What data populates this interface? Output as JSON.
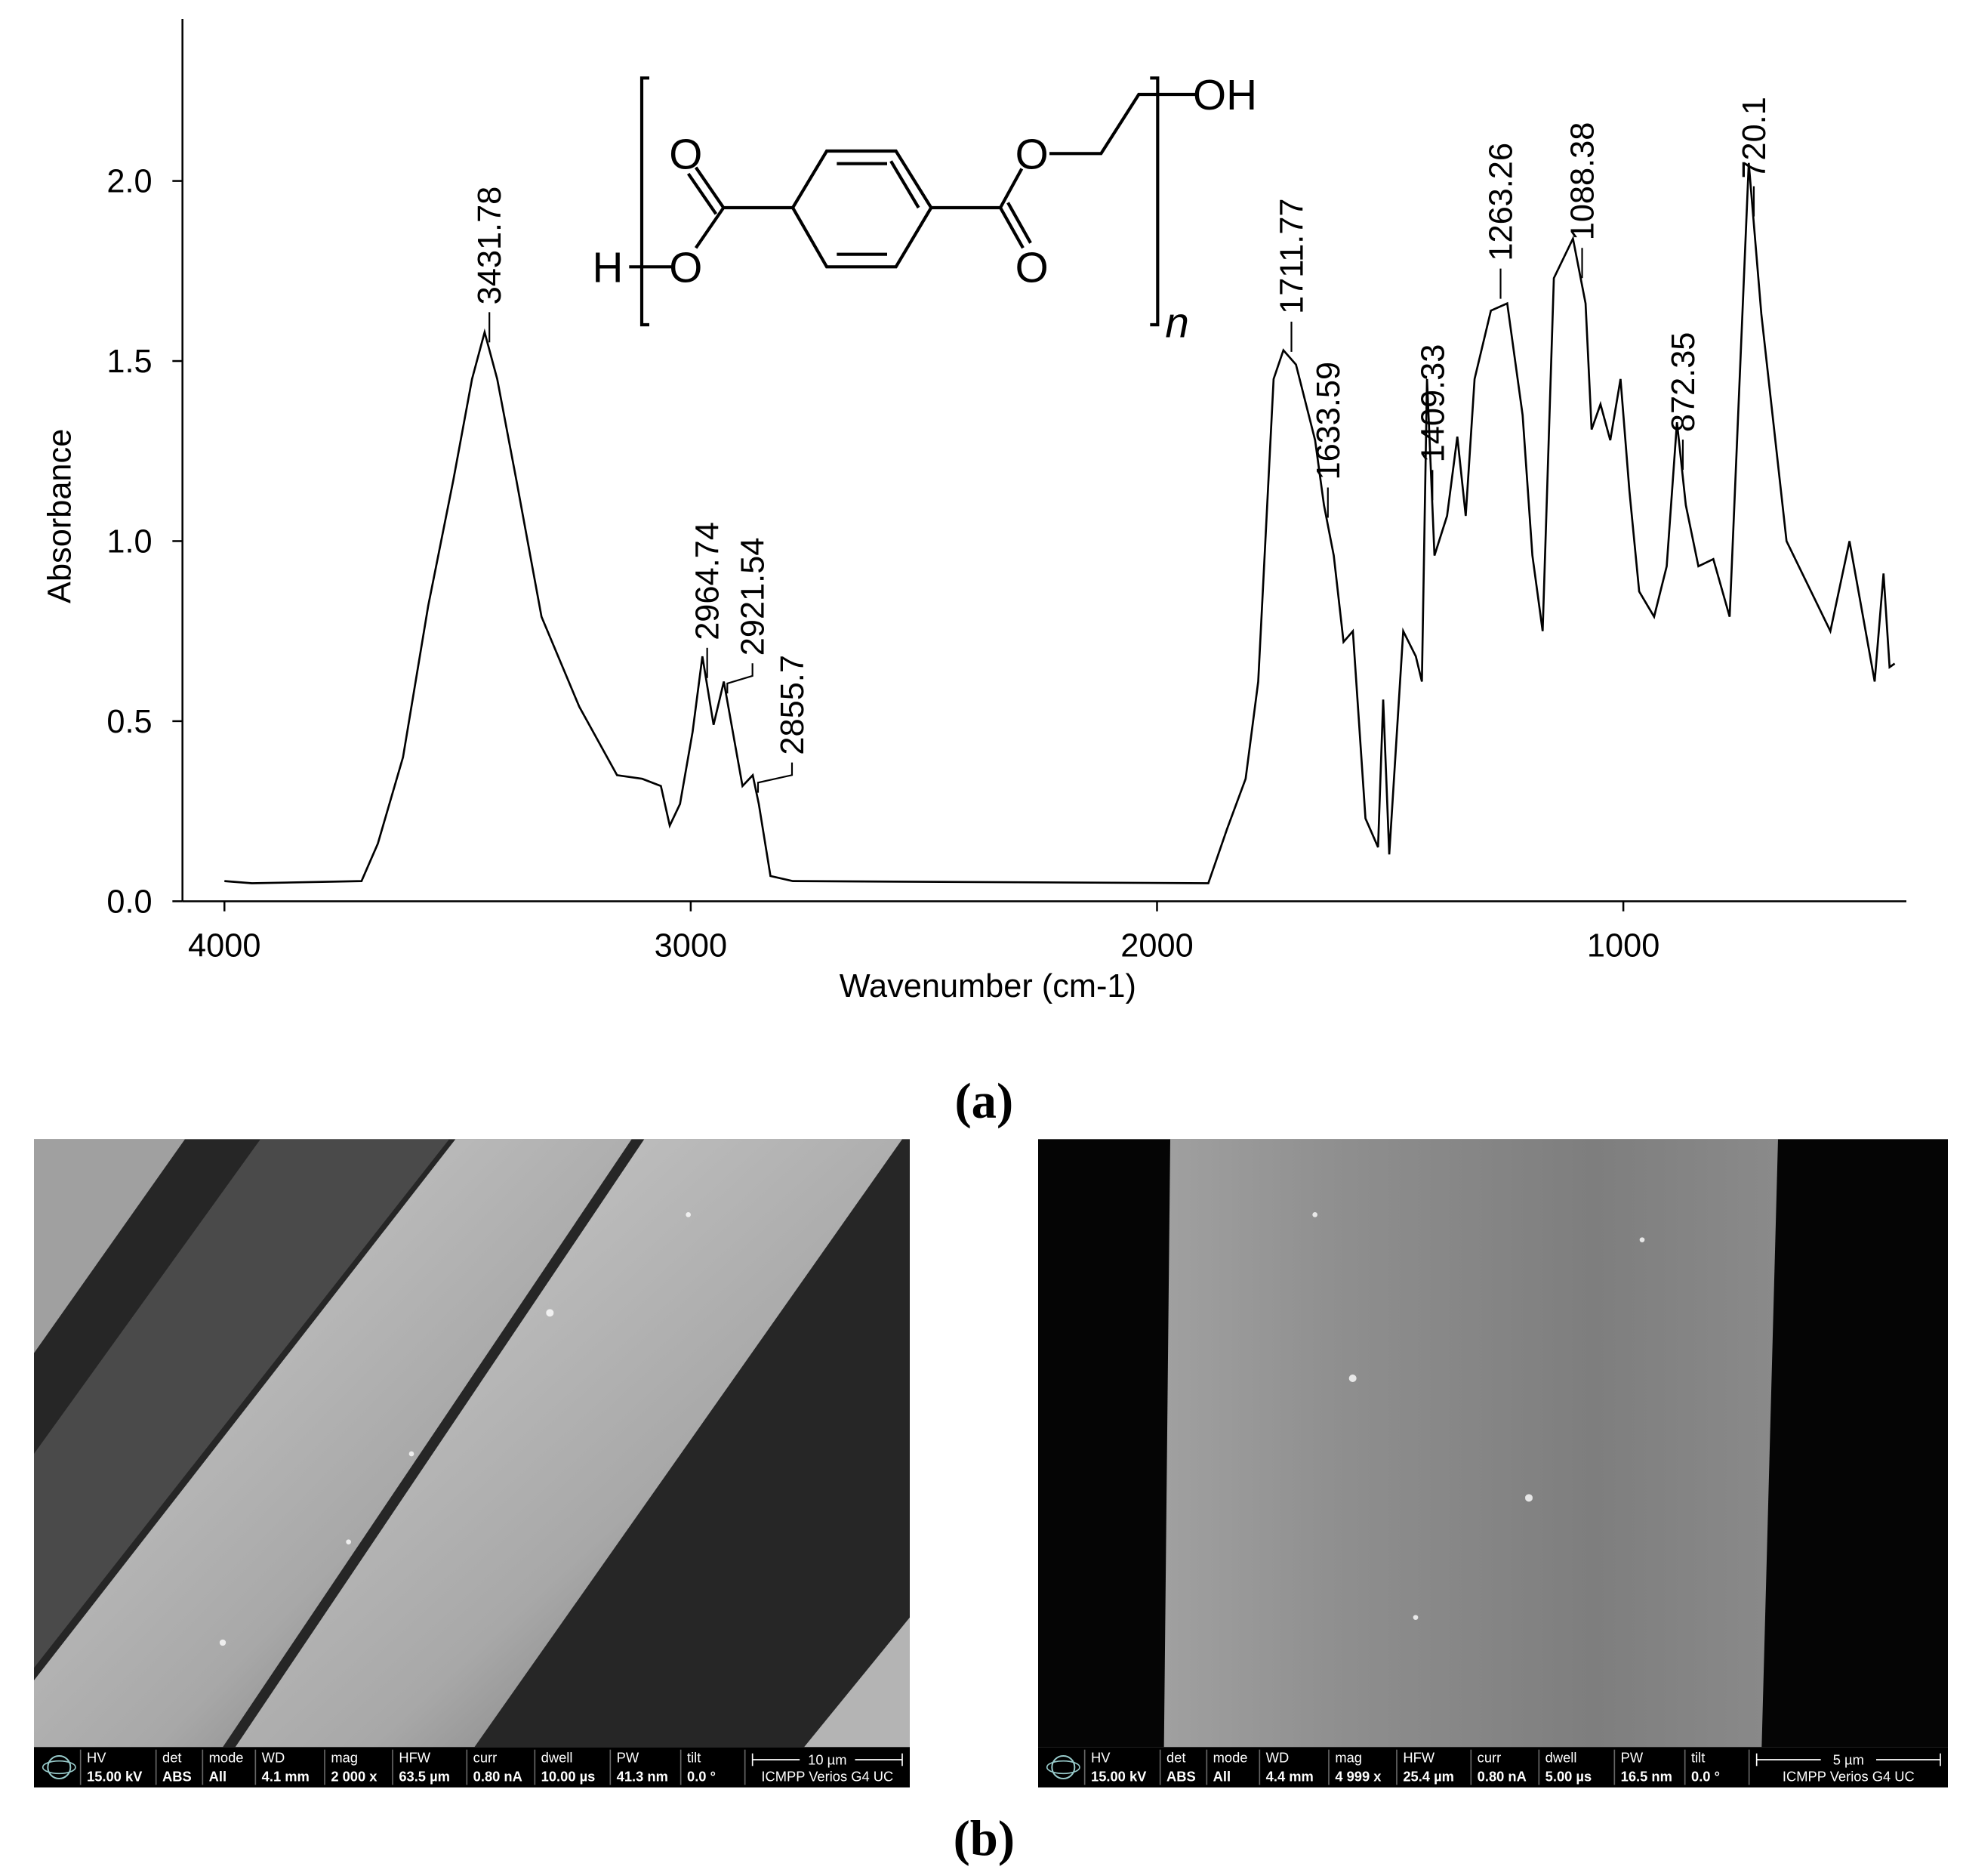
{
  "chart_data": {
    "type": "line",
    "x_label": "Wavenumber (cm-1)",
    "y_label": "Absorbance",
    "x": [
      4000,
      3941,
      3706,
      3671,
      3617,
      3563,
      3509,
      3469,
      3442,
      3415,
      3374,
      3320,
      3239,
      3158,
      3104,
      3064,
      3045,
      3023,
      2996,
      2975,
      2951,
      2929,
      2889,
      2867,
      2854,
      2829,
      2781,
      1890,
      1850,
      1810,
      1783,
      1750,
      1729,
      1702,
      1661,
      1642,
      1621,
      1600,
      1580,
      1553,
      1526,
      1515,
      1502,
      1472,
      1445,
      1432,
      1421,
      1405,
      1378,
      1356,
      1338,
      1319,
      1284,
      1249,
      1216,
      1195,
      1173,
      1149,
      1108,
      1081,
      1068,
      1049,
      1028,
      1006,
      987,
      966,
      934,
      907,
      885,
      866,
      839,
      807,
      772,
      731,
      704,
      650,
      556,
      515,
      461,
      442,
      429,
      418
    ],
    "values": [
      0.056,
      0.05,
      0.056,
      0.16,
      0.4,
      0.82,
      1.17,
      1.45,
      1.58,
      1.45,
      1.17,
      0.79,
      0.54,
      0.35,
      0.34,
      0.32,
      0.21,
      0.27,
      0.47,
      0.68,
      0.49,
      0.61,
      0.32,
      0.35,
      0.27,
      0.07,
      0.056,
      0.05,
      0.2,
      0.34,
      0.61,
      1.45,
      1.53,
      1.49,
      1.28,
      1.1,
      0.96,
      0.72,
      0.75,
      0.23,
      0.15,
      0.56,
      0.13,
      0.75,
      0.68,
      0.61,
      1.45,
      0.96,
      1.07,
      1.29,
      1.07,
      1.45,
      1.64,
      1.66,
      1.35,
      0.96,
      0.75,
      1.73,
      1.84,
      1.66,
      1.31,
      1.38,
      1.28,
      1.45,
      1.14,
      0.86,
      0.79,
      0.93,
      1.33,
      1.1,
      0.93,
      0.95,
      0.79,
      2.05,
      1.63,
      1.0,
      0.75,
      1.0,
      0.61,
      0.91,
      0.65,
      0.66
    ],
    "color": "#000000",
    "xlim": [
      4090,
      393
    ],
    "ylim": [
      0,
      2.45
    ],
    "xticks": [
      4000,
      3000,
      2000,
      1000
    ],
    "yticks": [
      {
        "value": 0,
        "label": "0.0"
      },
      0.5,
      {
        "value": 1,
        "label": "1.0"
      },
      1.5,
      {
        "value": 2,
        "label": "2.0"
      }
    ],
    "peak_labels": [
      3431.78,
      2964.74,
      2921.54,
      2855.7,
      1711.77,
      1633.59,
      1409.33,
      1263.26,
      1088.38,
      872.35,
      720.1
    ]
  },
  "structure": {
    "labels": [
      "O",
      "O",
      "H",
      "O",
      "O",
      "OH",
      "n"
    ]
  },
  "panel_labels": [
    "(a)",
    "(b)"
  ],
  "sem_images": [
    {
      "fields": [
        {
          "name": "HV",
          "value": "15.00 kV"
        },
        {
          "name": "det",
          "value": "ABS"
        },
        {
          "name": "mode",
          "value": "All"
        },
        {
          "name": "WD",
          "value": "4.1 mm"
        },
        {
          "name": "mag",
          "value": "2 000 x"
        },
        {
          "name": "HFW",
          "value": "63.5 µm"
        },
        {
          "name": "curr",
          "value": "0.80 nA"
        },
        {
          "name": "dwell",
          "value": "10.00 µs"
        },
        {
          "name": "PW",
          "value": "41.3 nm"
        },
        {
          "name": "tilt",
          "value": "0.0 °"
        }
      ],
      "scale_bar": "10 µm",
      "instrument": "ICMPP Verios G4 UC"
    },
    {
      "fields": [
        {
          "name": "HV",
          "value": "15.00 kV"
        },
        {
          "name": "det",
          "value": "ABS"
        },
        {
          "name": "mode",
          "value": "All"
        },
        {
          "name": "WD",
          "value": "4.4 mm"
        },
        {
          "name": "mag",
          "value": "4 999 x"
        },
        {
          "name": "HFW",
          "value": "25.4 µm"
        },
        {
          "name": "curr",
          "value": "0.80 nA"
        },
        {
          "name": "dwell",
          "value": "5.00 µs"
        },
        {
          "name": "PW",
          "value": "16.5 nm"
        },
        {
          "name": "tilt",
          "value": "0.0 °"
        }
      ],
      "scale_bar": "5 µm",
      "instrument": "ICMPP Verios G4 UC"
    }
  ]
}
